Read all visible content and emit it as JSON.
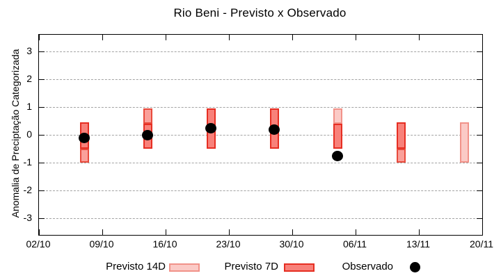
{
  "chart_data": {
    "type": "bar",
    "subtype": "floating-range-bars-with-points",
    "title": "Rio Beni - Previsto x Observado",
    "xlabel": "",
    "ylabel": "Anomalia de Preciptação Categorizada",
    "ylim": [
      -3.6,
      3.6
    ],
    "yticks": [
      -3,
      -2,
      -1,
      0,
      1,
      2,
      3
    ],
    "xticks": [
      "02/10",
      "09/10",
      "16/10",
      "23/10",
      "30/10",
      "06/11",
      "13/11",
      "20/11"
    ],
    "x_total_days": 49,
    "grid": "horizontal-dashed",
    "x_dates": [
      "07/10",
      "14/10",
      "21/10",
      "28/10",
      "04/11",
      "11/11",
      "18/11"
    ],
    "series": [
      {
        "name": "Previsto 14D",
        "type": "range",
        "ranges": [
          [
            -1.0,
            0.45
          ],
          [
            0.4,
            0.95
          ],
          null,
          null,
          [
            0.4,
            0.95
          ],
          [
            -1.0,
            -0.5
          ],
          [
            -1.0,
            0.45
          ]
        ]
      },
      {
        "name": "Previsto 7D",
        "type": "range",
        "ranges": [
          [
            -0.5,
            0.45
          ],
          [
            -0.5,
            0.4
          ],
          [
            -0.5,
            0.95
          ],
          [
            -0.5,
            0.95
          ],
          [
            -0.5,
            0.4
          ],
          [
            -0.5,
            0.45
          ],
          null
        ]
      },
      {
        "name": "Observado",
        "type": "point",
        "values": [
          -0.1,
          0.0,
          0.25,
          0.2,
          -0.75,
          null,
          null
        ]
      }
    ],
    "bars": [
      {
        "date": "07/10",
        "day": 5,
        "segments": [
          {
            "lo": -0.5,
            "hi": 0.45,
            "shade": "dark"
          },
          {
            "lo": -1.0,
            "hi": -0.5,
            "shade": "mid"
          }
        ],
        "obs": -0.1
      },
      {
        "date": "14/10",
        "day": 12,
        "segments": [
          {
            "lo": 0.4,
            "hi": 0.95,
            "shade": "mid"
          },
          {
            "lo": -0.5,
            "hi": 0.4,
            "shade": "dark"
          }
        ],
        "obs": 0.0
      },
      {
        "date": "21/10",
        "day": 19,
        "segments": [
          {
            "lo": -0.5,
            "hi": 0.95,
            "shade": "dark"
          }
        ],
        "obs": 0.25
      },
      {
        "date": "28/10",
        "day": 26,
        "segments": [
          {
            "lo": -0.5,
            "hi": 0.95,
            "shade": "dark"
          }
        ],
        "obs": 0.2
      },
      {
        "date": "04/11",
        "day": 33,
        "segments": [
          {
            "lo": 0.4,
            "hi": 0.95,
            "shade": "light"
          },
          {
            "lo": -0.5,
            "hi": 0.4,
            "shade": "dark"
          }
        ],
        "obs": -0.75
      },
      {
        "date": "11/11",
        "day": 40,
        "segments": [
          {
            "lo": -0.5,
            "hi": 0.45,
            "shade": "dark"
          },
          {
            "lo": -1.0,
            "hi": -0.5,
            "shade": "mid"
          }
        ],
        "obs": null
      },
      {
        "date": "18/11",
        "day": 47,
        "segments": [
          {
            "lo": -1.0,
            "hi": 0.45,
            "shade": "light"
          }
        ],
        "obs": null
      }
    ],
    "styles": {
      "light": {
        "fill": "#fbcac6",
        "border": "#f19289"
      },
      "mid": {
        "fill": "#faa09a",
        "border": "#e84a3c"
      },
      "dark": {
        "fill": "#f8817a",
        "border": "#e62e22"
      }
    },
    "colors": {
      "grid": "#a3a3a3",
      "axis": "#000000",
      "observed_dot": "#000000",
      "background": "#ffffff"
    },
    "legend": {
      "position": "bottom-center",
      "items": [
        {
          "label": "Previsto 14D",
          "glyph": "box-light"
        },
        {
          "label": "Previsto 7D",
          "glyph": "box-dark"
        },
        {
          "label": "Observado",
          "glyph": "black-dot"
        }
      ]
    }
  }
}
